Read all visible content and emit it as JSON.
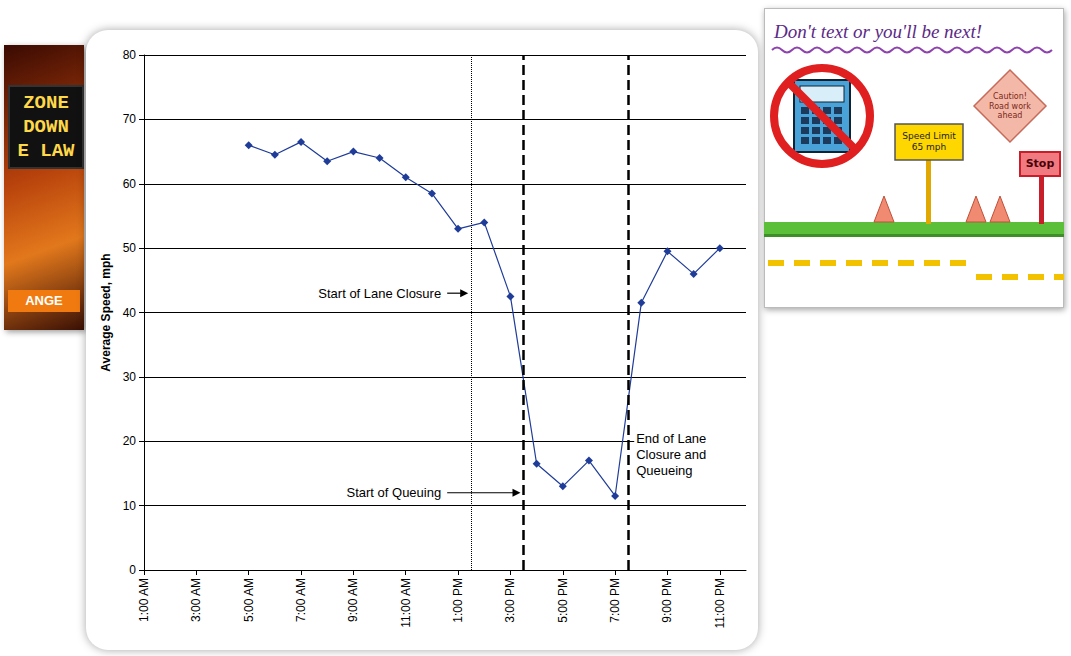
{
  "chart_data": {
    "type": "line",
    "y_label": "Average Speed, mph",
    "x": [
      5,
      6,
      7,
      8,
      9,
      10,
      11,
      12,
      13,
      14,
      15,
      16,
      17,
      18,
      19,
      20,
      21,
      22,
      23
    ],
    "values": [
      66,
      64.5,
      66.5,
      63.5,
      65,
      64,
      61,
      58.5,
      53,
      54,
      42.5,
      16.5,
      13,
      17,
      11.5,
      41.5,
      49.5,
      46,
      50
    ],
    "color": "#1f3c99",
    "marker": "diamond",
    "xlim": [
      1,
      24
    ],
    "xticks": [
      {
        "value": 1,
        "label": "1:00 AM"
      },
      {
        "value": 3,
        "label": "3:00 AM"
      },
      {
        "value": 5,
        "label": "5:00 AM"
      },
      {
        "value": 7,
        "label": "7:00 AM"
      },
      {
        "value": 9,
        "label": "9:00 AM"
      },
      {
        "value": 11,
        "label": "11:00 AM"
      },
      {
        "value": 13,
        "label": "1:00 PM"
      },
      {
        "value": 15,
        "label": "3:00 PM"
      },
      {
        "value": 17,
        "label": "5:00 PM"
      },
      {
        "value": 19,
        "label": "7:00 PM"
      },
      {
        "value": 21,
        "label": "9:00 PM"
      },
      {
        "value": 23,
        "label": "11:00 PM"
      }
    ],
    "ylim": [
      0,
      80
    ],
    "yticks": [
      0,
      10,
      20,
      30,
      40,
      50,
      60,
      70,
      80
    ],
    "grid": true,
    "annotations": [
      {
        "text": "Start of Lane Closure",
        "x": 13.5,
        "y": 43,
        "line_style": "dotted"
      },
      {
        "text": "Start of Queuing",
        "x": 15.5,
        "y": 12,
        "line_style": "dashed"
      },
      {
        "text": "End of Lane Closure and Queueing",
        "x": 19.5,
        "y": 18,
        "line_style": "dashed"
      }
    ]
  },
  "poster": {
    "sign_lines": [
      "ZONE",
      "DOWN",
      "E LAW"
    ],
    "button": "ANGE"
  },
  "drawing": {
    "title": "Don't text or you'll be next!",
    "signs": [
      "Caution! Road work ahead",
      "Speed Limit 65 mph",
      "Stop"
    ]
  }
}
